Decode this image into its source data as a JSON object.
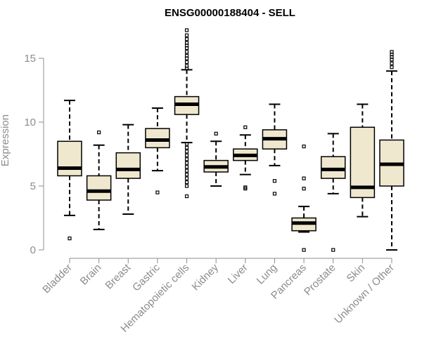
{
  "chart_data": {
    "type": "boxplot",
    "title": "ENSG00000188404 - SELL",
    "xlabel": "",
    "ylabel": "Expression",
    "ylim": [
      0,
      17
    ],
    "yticks": [
      0,
      5,
      10,
      15
    ],
    "box_fill": "#efe8cf",
    "box_stroke": "#000000",
    "axis_color": "#8c8c8c",
    "categories": [
      "Bladder",
      "Brain",
      "Breast",
      "Gastric",
      "Hematopoietic cells",
      "Kidney",
      "Liver",
      "Lung",
      "Pancreas",
      "Prostate",
      "Skin",
      "Unknown / Other"
    ],
    "boxes": [
      {
        "name": "Bladder",
        "whisker_low": 2.7,
        "q1": 5.8,
        "median": 6.4,
        "q3": 8.5,
        "whisker_high": 11.7,
        "outliers": [
          0.9
        ]
      },
      {
        "name": "Brain",
        "whisker_low": 1.6,
        "q1": 3.9,
        "median": 4.6,
        "q3": 5.8,
        "whisker_high": 8.2,
        "outliers": [
          9.2
        ]
      },
      {
        "name": "Breast",
        "whisker_low": 2.8,
        "q1": 5.6,
        "median": 6.3,
        "q3": 7.6,
        "whisker_high": 9.8,
        "outliers": []
      },
      {
        "name": "Gastric",
        "whisker_low": 6.2,
        "q1": 8.0,
        "median": 8.6,
        "q3": 9.5,
        "whisker_high": 11.1,
        "outliers": [
          4.5
        ]
      },
      {
        "name": "Hematopoietic cells",
        "whisker_low": 8.4,
        "q1": 10.6,
        "median": 11.4,
        "q3": 12.0,
        "whisker_high": 14.1,
        "outliers": [
          4.2,
          5.0,
          5.3,
          5.6,
          5.9,
          6.2,
          6.5,
          6.8,
          7.1,
          7.4,
          7.7,
          8.0,
          8.3,
          14.2,
          14.4,
          14.7,
          15.0,
          15.2,
          15.5,
          15.8,
          16.0,
          16.2,
          16.5,
          16.8,
          17.2
        ]
      },
      {
        "name": "Kidney",
        "whisker_low": 5.0,
        "q1": 6.1,
        "median": 6.5,
        "q3": 7.0,
        "whisker_high": 8.5,
        "outliers": [
          9.1
        ]
      },
      {
        "name": "Liver",
        "whisker_low": 5.9,
        "q1": 7.0,
        "median": 7.4,
        "q3": 7.9,
        "whisker_high": 9.0,
        "outliers": [
          4.8,
          4.9,
          9.6
        ]
      },
      {
        "name": "Lung",
        "whisker_low": 6.6,
        "q1": 7.9,
        "median": 8.7,
        "q3": 9.4,
        "whisker_high": 11.4,
        "outliers": [
          4.4,
          5.4
        ]
      },
      {
        "name": "Pancreas",
        "whisker_low": 1.4,
        "q1": 1.5,
        "median": 2.1,
        "q3": 2.5,
        "whisker_high": 3.4,
        "outliers": [
          0.0,
          4.8,
          5.6,
          8.1
        ]
      },
      {
        "name": "Prostate",
        "whisker_low": 4.4,
        "q1": 5.6,
        "median": 6.3,
        "q3": 7.3,
        "whisker_high": 9.1,
        "outliers": [
          0.0
        ]
      },
      {
        "name": "Skin",
        "whisker_low": 2.6,
        "q1": 4.1,
        "median": 4.9,
        "q3": 9.6,
        "whisker_high": 11.4,
        "outliers": []
      },
      {
        "name": "Unknown / Other",
        "whisker_low": 0.0,
        "q1": 5.0,
        "median": 6.7,
        "q3": 8.6,
        "whisker_high": 14.0,
        "outliers": [
          14.3,
          14.6,
          14.9,
          15.1,
          15.3,
          15.5
        ]
      }
    ]
  }
}
